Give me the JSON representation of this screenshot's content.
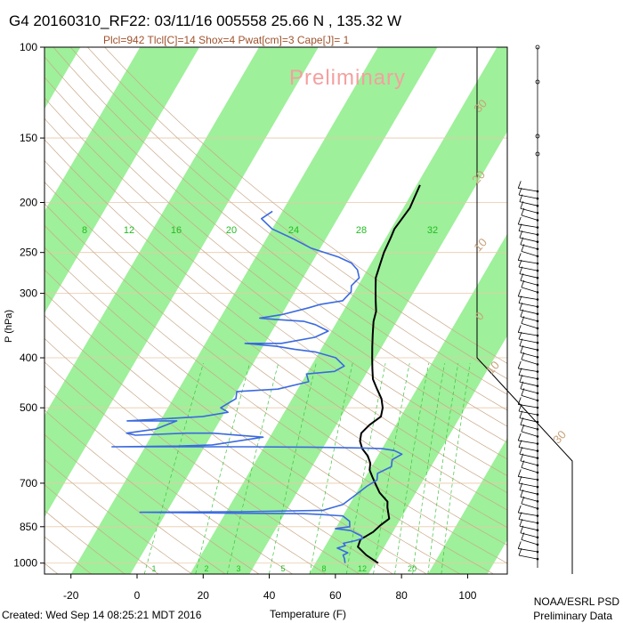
{
  "header": {
    "title": "G4 20160310_RF22: 03/11/16 005558  25.66 N , 135.32 W",
    "params": "Plcl=942 Tlcl[C]=14 Shox=4 Pwat[cm]=3 Cape[J]= 1",
    "watermark": "Preliminary"
  },
  "footer": {
    "created": "Created: Wed Sep 14 08:25:21 MDT 2016",
    "org": "NOAA/ESRL PSD",
    "note": "Preliminary Data"
  },
  "colors": {
    "band": "#9ef09a",
    "temperature": "#000000",
    "dewpoint": "#3a6ae0",
    "isobar": "#e8c9a8",
    "adiabat": "#c9a98a",
    "mixing_ratio": "#3ec23e",
    "label_tan": "#c8a27a"
  },
  "chart_data": {
    "type": "line",
    "title": "G4 20160310_RF22: 03/11/16 005558  25.66 N , 135.32 W",
    "xlabel": "Temperature (F)",
    "ylabel": "P (hPa)",
    "xlim": [
      -28,
      112
    ],
    "ylim": [
      1050,
      100
    ],
    "y_scale": "log",
    "grid": true,
    "x_ticks": [
      "-20",
      "0",
      "20",
      "40",
      "60",
      "80",
      "100"
    ],
    "y_ticks": [
      "100",
      "150",
      "200",
      "250",
      "300",
      "400",
      "500",
      "700",
      "850",
      "1000"
    ],
    "mixing_ratio_labels_upper": [
      "8",
      "12",
      "16",
      "20",
      "24",
      "28",
      "32"
    ],
    "mixing_ratio_labels_lower": [
      "1",
      "2",
      "3",
      "5",
      "8",
      "12",
      "20"
    ],
    "isotherm_labels_right": [
      "30",
      "20",
      "10",
      "0",
      "10",
      "30"
    ],
    "series": [
      {
        "key": "temperature",
        "points": [
          [
            71,
            1000
          ],
          [
            66,
            965
          ],
          [
            62,
            930
          ],
          [
            61.5,
            900
          ],
          [
            64,
            870
          ],
          [
            65,
            845
          ],
          [
            66.5,
            820
          ],
          [
            64,
            780
          ],
          [
            63,
            760
          ],
          [
            59,
            730
          ],
          [
            56,
            700
          ],
          [
            54,
            680
          ],
          [
            52,
            660
          ],
          [
            51,
            640
          ],
          [
            49,
            620
          ],
          [
            46,
            600
          ],
          [
            44,
            580
          ],
          [
            43,
            560
          ],
          [
            44,
            540
          ],
          [
            46,
            520
          ],
          [
            45,
            500
          ],
          [
            43,
            480
          ],
          [
            40,
            460
          ],
          [
            37,
            440
          ],
          [
            35,
            420
          ],
          [
            33,
            400
          ],
          [
            31,
            380
          ],
          [
            29,
            360
          ],
          [
            27,
            340
          ],
          [
            26,
            325
          ],
          [
            24,
            310
          ],
          [
            22,
            295
          ],
          [
            20,
            280
          ],
          [
            19,
            265
          ],
          [
            18,
            250
          ],
          [
            17.5,
            235
          ],
          [
            17,
            225
          ],
          [
            17.5,
            215
          ],
          [
            18,
            205
          ],
          [
            17.5,
            195
          ],
          [
            17,
            185
          ]
        ]
      },
      {
        "key": "dewpoint",
        "points": [
          [
            61,
            1000
          ],
          [
            60,
            980
          ],
          [
            59,
            965
          ],
          [
            60,
            955
          ],
          [
            58,
            945
          ],
          [
            57,
            940
          ],
          [
            56,
            935
          ],
          [
            58,
            925
          ],
          [
            57,
            915
          ],
          [
            60,
            905
          ],
          [
            62,
            895
          ],
          [
            61,
            885
          ],
          [
            59,
            875
          ],
          [
            57,
            865
          ],
          [
            52,
            857
          ],
          [
            56,
            850
          ],
          [
            55,
            830
          ],
          [
            52,
            810
          ],
          [
            45,
            805
          ],
          [
            40,
            802
          ],
          [
            15,
            800
          ],
          [
            0,
            798
          ],
          [
            -10,
            797
          ],
          [
            20,
            795
          ],
          [
            45,
            790
          ],
          [
            50,
            770
          ],
          [
            52,
            740
          ],
          [
            54,
            710
          ],
          [
            56,
            690
          ],
          [
            55,
            670
          ],
          [
            58,
            650
          ],
          [
            57,
            630
          ],
          [
            59,
            615
          ],
          [
            56,
            605
          ],
          [
            52,
            600
          ],
          [
            45,
            598
          ],
          [
            30,
            596
          ],
          [
            10,
            595
          ],
          [
            -30,
            595
          ],
          [
            -10,
            593
          ],
          [
            0,
            590
          ],
          [
            14,
            570
          ],
          [
            -2,
            560
          ],
          [
            -10,
            560
          ],
          [
            -25,
            565
          ],
          [
            -28,
            560
          ],
          [
            -20,
            550
          ],
          [
            -15,
            530
          ],
          [
            -30,
            530
          ],
          [
            -8,
            520
          ],
          [
            -1,
            510
          ],
          [
            -4,
            500
          ],
          [
            -1,
            480
          ],
          [
            -2,
            465
          ],
          [
            10,
            460
          ],
          [
            18,
            445
          ],
          [
            16,
            430
          ],
          [
            24,
            425
          ],
          [
            26,
            415
          ],
          [
            22,
            400
          ],
          [
            15,
            390
          ],
          [
            8,
            385
          ],
          [
            2,
            380
          ],
          [
            -8,
            375
          ],
          [
            3,
            375
          ],
          [
            12,
            365
          ],
          [
            15,
            355
          ],
          [
            10,
            345
          ],
          [
            6,
            340
          ],
          [
            -3,
            337
          ],
          [
            -8,
            335
          ],
          [
            -2,
            330
          ],
          [
            5,
            320
          ],
          [
            8,
            315
          ],
          [
            14,
            310
          ],
          [
            15,
            298
          ],
          [
            14,
            290
          ],
          [
            15,
            280
          ],
          [
            13,
            270
          ],
          [
            10,
            262
          ],
          [
            5,
            255
          ],
          [
            -5,
            245
          ],
          [
            -12,
            235
          ],
          [
            -20,
            225
          ],
          [
            -25,
            215
          ],
          [
            -23,
            208
          ]
        ]
      }
    ]
  }
}
